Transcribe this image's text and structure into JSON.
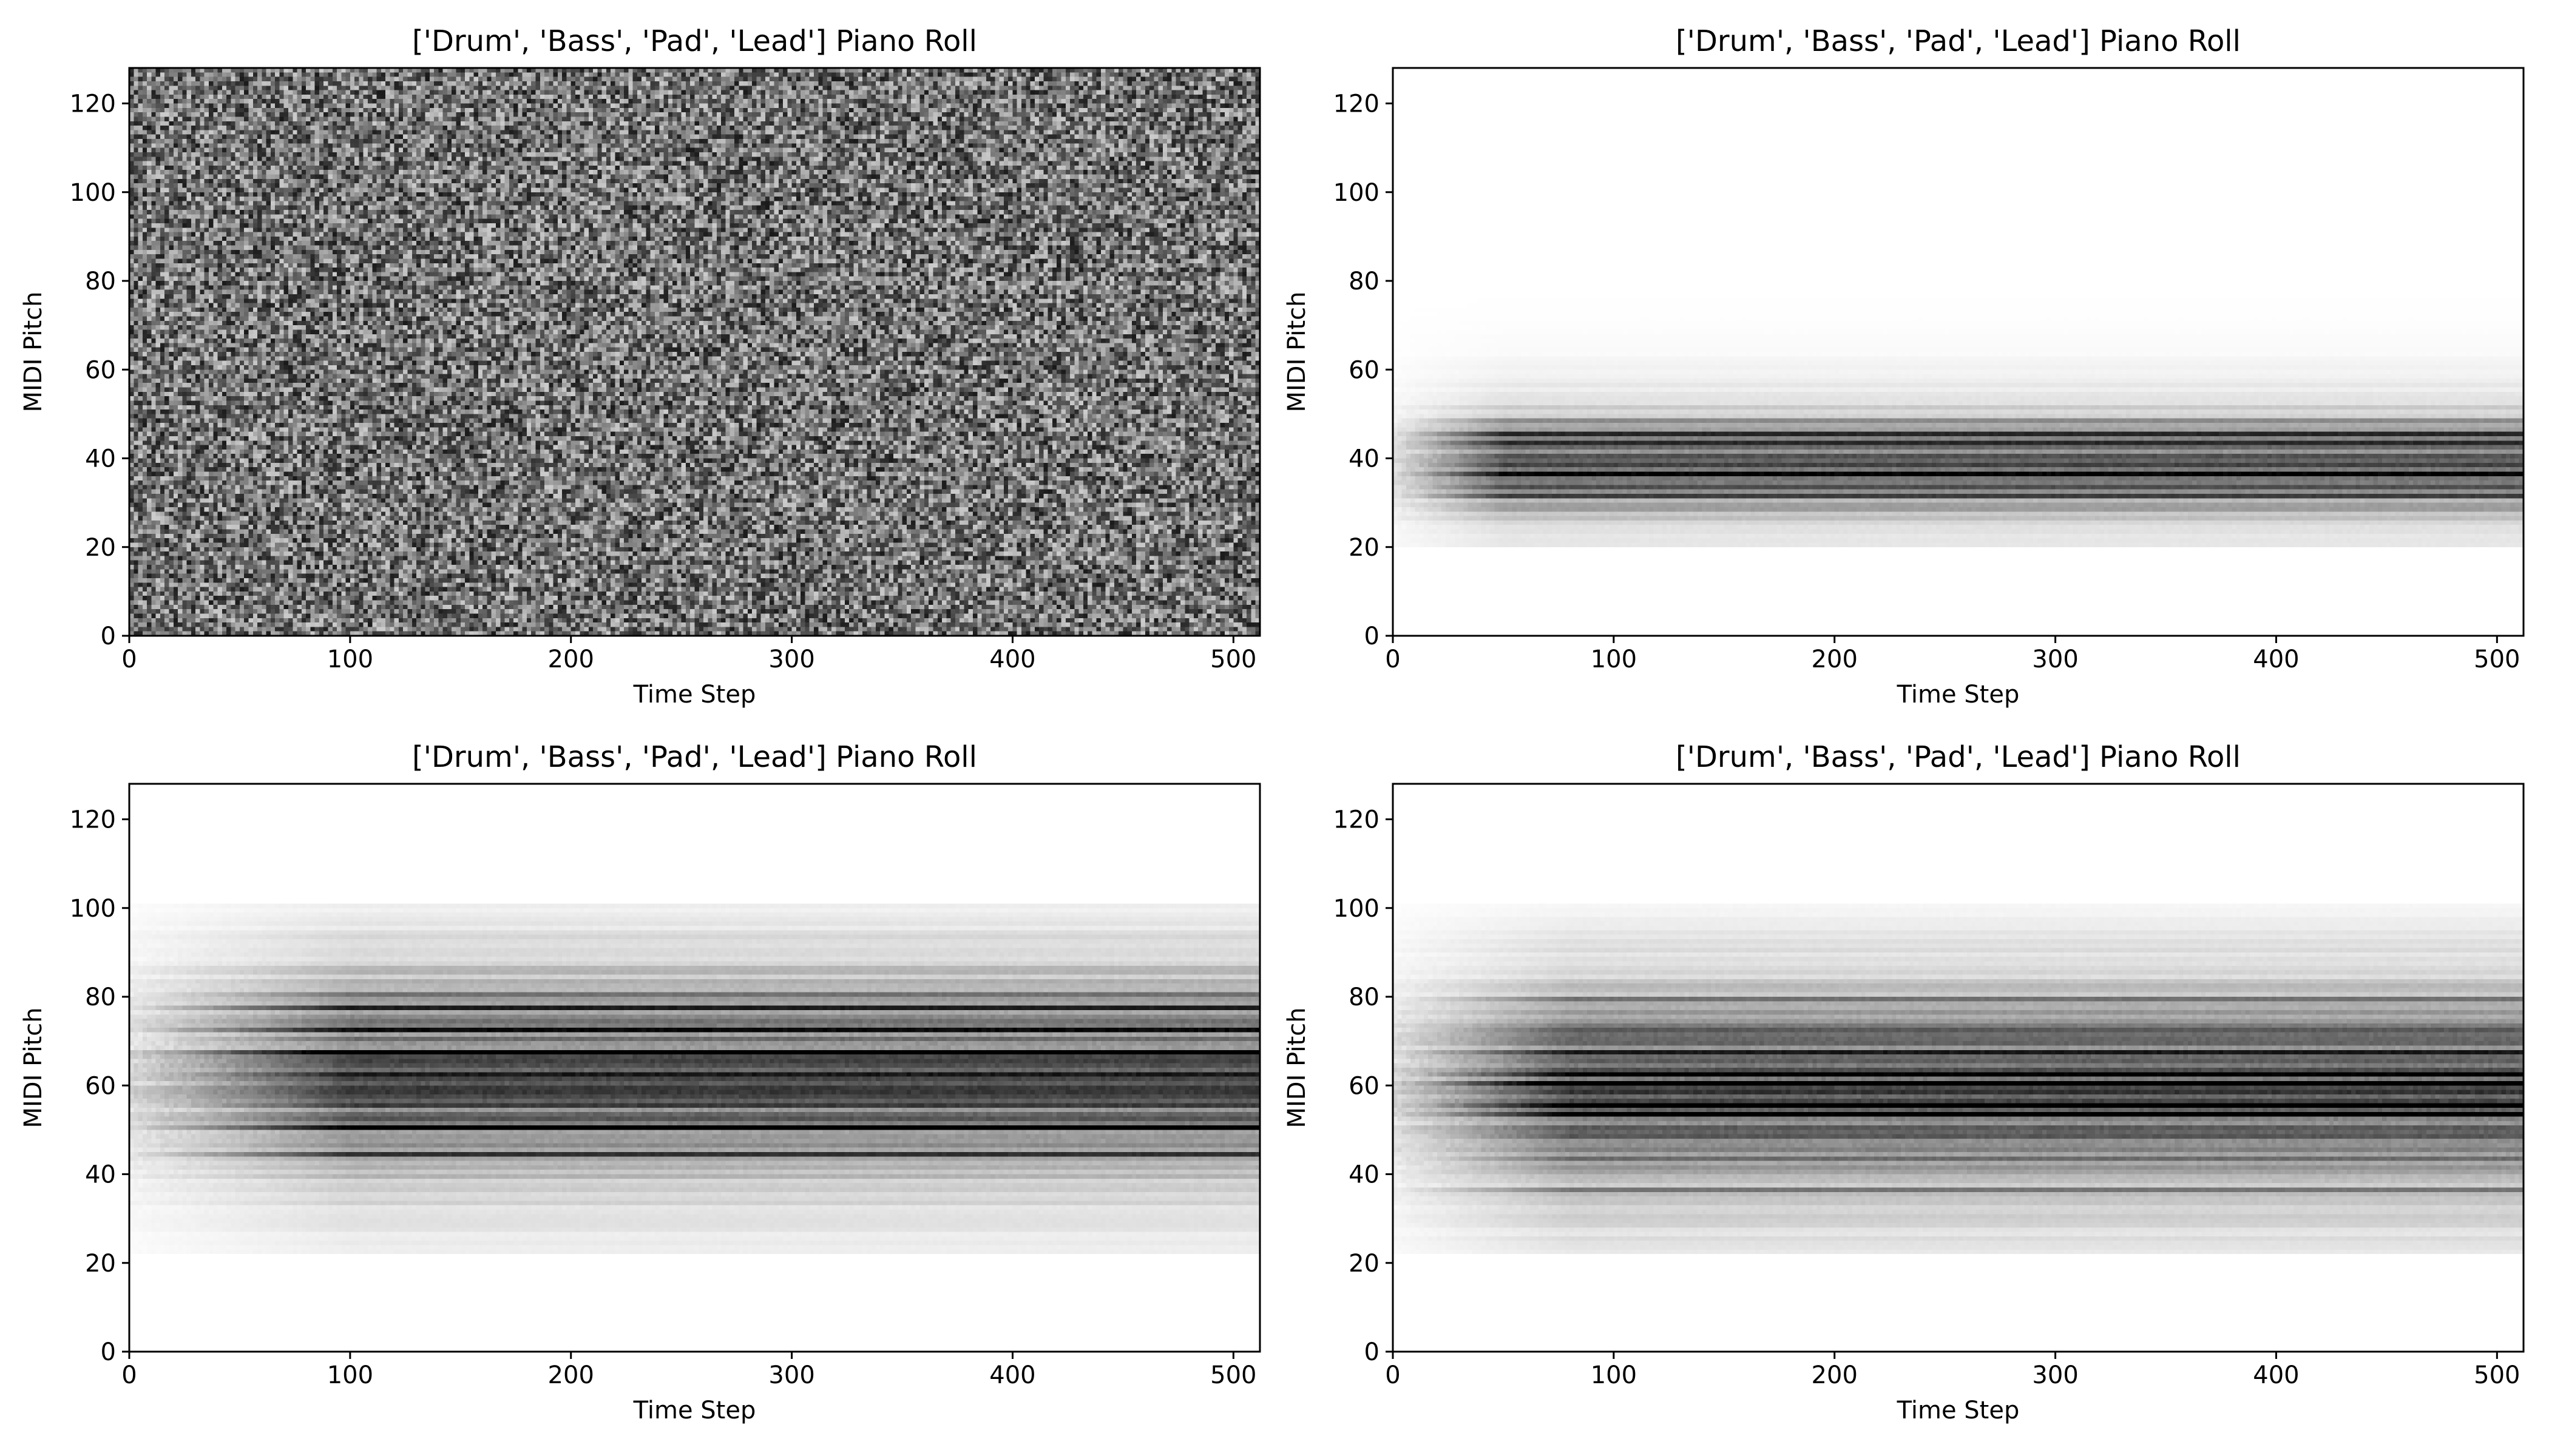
{
  "chart_data": [
    {
      "type": "heatmap",
      "title": "['Drum', 'Bass', 'Pad', 'Lead'] Piano Roll",
      "xlabel": "Time Step",
      "ylabel": "MIDI Pitch",
      "xlim": [
        0,
        512
      ],
      "ylim": [
        0,
        128
      ],
      "xticks": [
        0,
        100,
        200,
        300,
        400,
        500
      ],
      "yticks": [
        0,
        20,
        40,
        60,
        80,
        100,
        120
      ],
      "colormap": "gray_r",
      "pattern": {
        "kind": "uniform-noise",
        "pitch_range": [
          0,
          128
        ],
        "mean_intensity": 0.55,
        "variance": 0.35,
        "bands": []
      }
    },
    {
      "type": "heatmap",
      "title": "['Drum', 'Bass', 'Pad', 'Lead'] Piano Roll",
      "xlabel": "Time Step",
      "ylabel": "MIDI Pitch",
      "xlim": [
        0,
        512
      ],
      "ylim": [
        0,
        128
      ],
      "xticks": [
        0,
        100,
        200,
        300,
        400,
        500
      ],
      "yticks": [
        0,
        20,
        40,
        60,
        80,
        100,
        120
      ],
      "colormap": "gray_r",
      "pattern": {
        "kind": "pitch-bands",
        "pitch_range": [
          20,
          80
        ],
        "center_pitch": 38,
        "spread": 7,
        "onset_step": 10,
        "max_intensity": 0.75,
        "bands": [
          28,
          31,
          33,
          36,
          38,
          40,
          43,
          45,
          48
        ]
      }
    },
    {
      "type": "heatmap",
      "title": "['Drum', 'Bass', 'Pad', 'Lead'] Piano Roll",
      "xlabel": "Time Step",
      "ylabel": "MIDI Pitch",
      "xlim": [
        0,
        512
      ],
      "ylim": [
        0,
        128
      ],
      "xticks": [
        0,
        100,
        200,
        300,
        400,
        500
      ],
      "yticks": [
        0,
        20,
        40,
        60,
        80,
        100,
        120
      ],
      "colormap": "gray_r",
      "pattern": {
        "kind": "pitch-bands",
        "pitch_range": [
          22,
          100
        ],
        "center_pitch": 62,
        "spread": 14,
        "onset_step": 60,
        "max_intensity": 0.85,
        "bands": [
          44,
          50,
          55,
          60,
          62,
          65,
          67,
          70,
          72,
          77,
          80
        ]
      }
    },
    {
      "type": "heatmap",
      "title": "['Drum', 'Bass', 'Pad', 'Lead'] Piano Roll",
      "xlabel": "Time Step",
      "ylabel": "MIDI Pitch",
      "xlim": [
        0,
        512
      ],
      "ylim": [
        0,
        128
      ],
      "xticks": [
        0,
        100,
        200,
        300,
        400,
        500
      ],
      "yticks": [
        0,
        20,
        40,
        60,
        80,
        100,
        120
      ],
      "colormap": "gray_r",
      "pattern": {
        "kind": "pitch-bands",
        "pitch_range": [
          22,
          100
        ],
        "center_pitch": 58,
        "spread": 14,
        "onset_step": 40,
        "max_intensity": 0.85,
        "bands": [
          36,
          41,
          43,
          48,
          53,
          55,
          60,
          62,
          65,
          67,
          72,
          79
        ]
      }
    }
  ]
}
